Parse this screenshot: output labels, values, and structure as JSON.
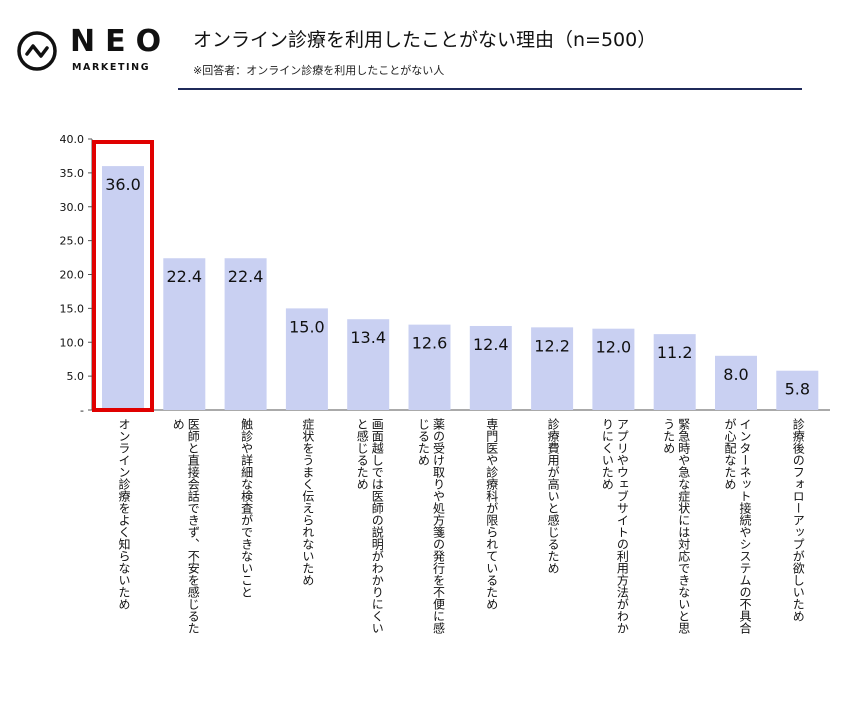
{
  "header": {
    "logo_text": "NEO",
    "logo_sub": "MARKETING",
    "title": "オンライン診療を利用したことがない理由（n=500）",
    "subtitle": "※回答者：オンライン診療を利用したことがない人"
  },
  "colors": {
    "bar": "#c9d0f2",
    "highlight": "#e00000",
    "rule": "#1f2a5a"
  },
  "chart_data": {
    "type": "bar",
    "title": "オンライン診療を利用したことがない理由（n=500）",
    "ylim": [
      0,
      40
    ],
    "yticks": [
      "-",
      "5.0",
      "10.0",
      "15.0",
      "20.0",
      "25.0",
      "30.0",
      "35.0",
      "40.0"
    ],
    "highlight_index": 0,
    "categories": [
      "オンライン診療をよく知らないため",
      "医師と直接会話できず、不安を感じるため",
      "触診や詳細な検査ができないこと",
      "症状をうまく伝えられないため",
      "画面越しでは医師の説明がわかりにくいと感じるため",
      "薬の受け取りや処方箋の発行を不便に感じるため",
      "専門医や診療科が限られているため",
      "診療費用が高いと感じるため",
      "アプリやウェブサイトの利用方法がわかりにくいため",
      "緊急時や急な症状には対応できないと思うため",
      "インターネット接続やシステムの不具合が心配なため",
      "診療後のフォローアップが欲しいため"
    ],
    "values": [
      36.0,
      22.4,
      22.4,
      15.0,
      13.4,
      12.6,
      12.4,
      12.2,
      12.0,
      11.2,
      8.0,
      5.8
    ],
    "labels": [
      "36.0",
      "22.4",
      "22.4",
      "15.0",
      "13.4",
      "12.6",
      "12.4",
      "12.2",
      "12.0",
      "11.2",
      "8.0",
      "5.8"
    ]
  }
}
